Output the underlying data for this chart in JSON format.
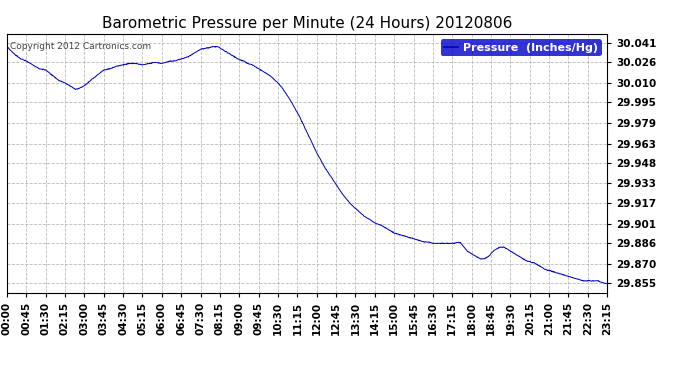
{
  "title": "Barometric Pressure per Minute (24 Hours) 20120806",
  "copyright_text": "Copyright 2012 Cartronics.com",
  "legend_label": "Pressure  (Inches/Hg)",
  "line_color": "#0000bb",
  "background_color": "#ffffff",
  "plot_bg_color": "#ffffff",
  "grid_color": "#bbbbbb",
  "yticks": [
    30.041,
    30.026,
    30.01,
    29.995,
    29.979,
    29.963,
    29.948,
    29.933,
    29.917,
    29.901,
    29.886,
    29.87,
    29.855
  ],
  "ylim": [
    29.848,
    30.048
  ],
  "xtick_labels": [
    "00:00",
    "00:45",
    "01:30",
    "02:15",
    "03:00",
    "03:45",
    "04:30",
    "05:15",
    "06:00",
    "06:45",
    "07:30",
    "08:15",
    "09:00",
    "09:45",
    "10:30",
    "11:15",
    "12:00",
    "12:45",
    "13:30",
    "14:15",
    "15:00",
    "15:45",
    "16:30",
    "17:15",
    "18:00",
    "18:45",
    "19:30",
    "20:15",
    "21:00",
    "21:45",
    "22:30",
    "23:15"
  ],
  "xtick_positions": [
    0,
    45,
    90,
    135,
    180,
    225,
    270,
    315,
    360,
    405,
    450,
    495,
    540,
    585,
    630,
    675,
    720,
    765,
    810,
    855,
    900,
    945,
    990,
    1035,
    1080,
    1125,
    1170,
    1215,
    1260,
    1305,
    1350,
    1395
  ],
  "title_fontsize": 11,
  "tick_fontsize": 7.5,
  "copyright_fontsize": 6.5,
  "legend_fontsize": 8
}
